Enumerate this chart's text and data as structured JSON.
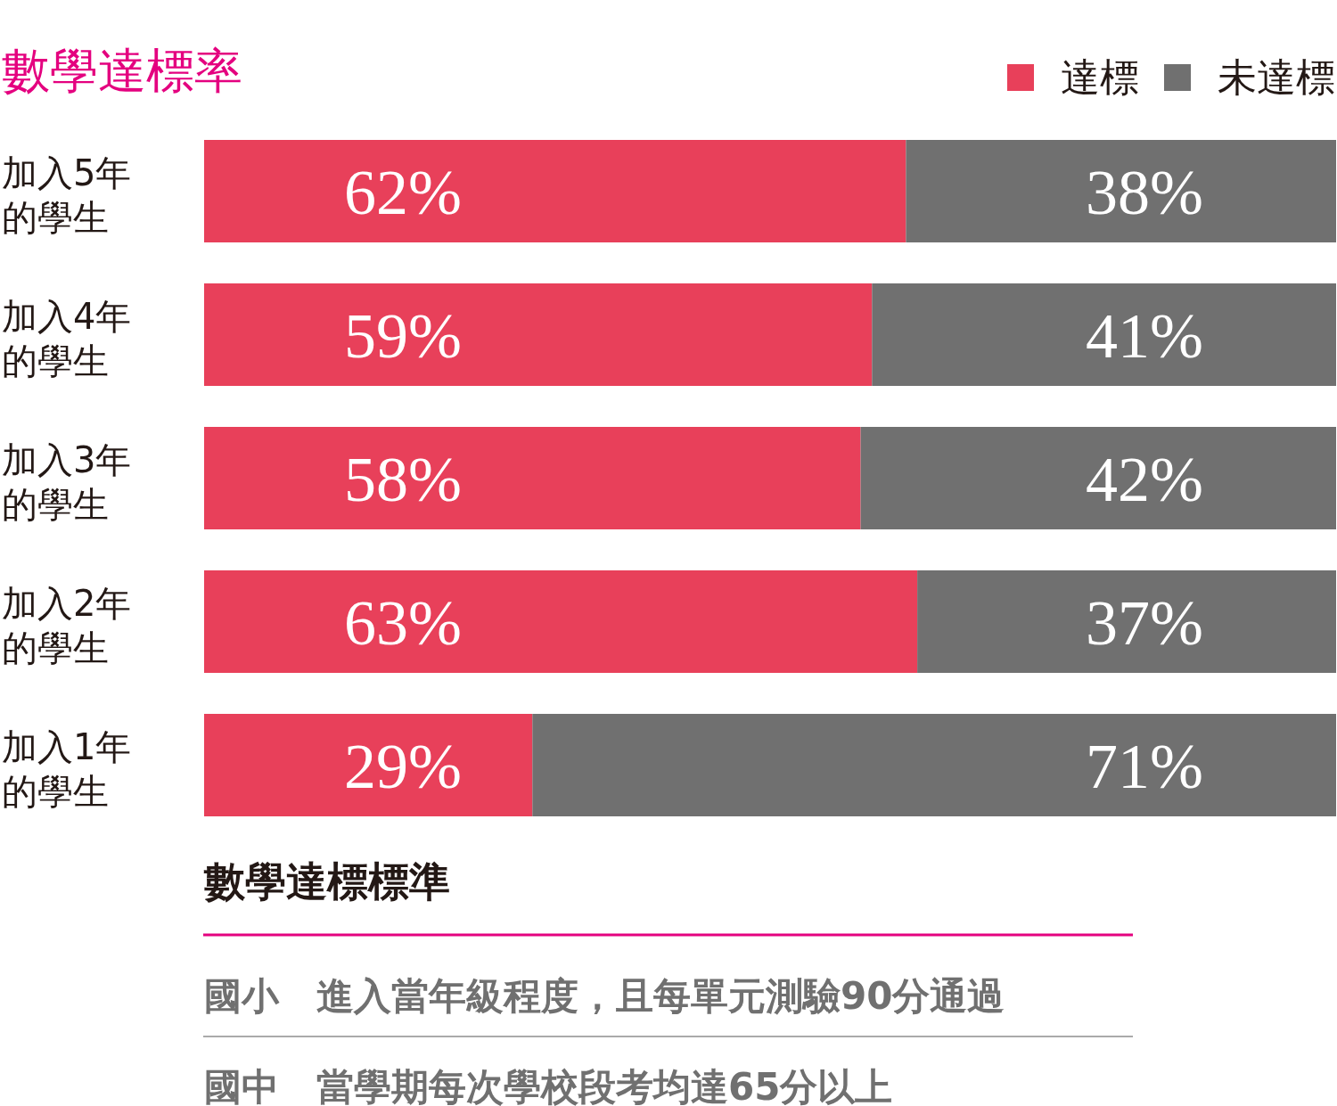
{
  "chart_data": {
    "type": "bar",
    "orientation": "horizontal",
    "stacked": true,
    "title": "數學達標率",
    "categories": [
      "加入5年的學生",
      "加入4年的學生",
      "加入3年的學生",
      "加入2年的學生",
      "加入1年的學生"
    ],
    "series": [
      {
        "name": "達標",
        "color": "#e8405a",
        "values": [
          62,
          59,
          58,
          63,
          29
        ],
        "value_labels": [
          "62%",
          "59%",
          "58%",
          "63%",
          "29%"
        ]
      },
      {
        "name": "未達標",
        "color": "#707070",
        "values": [
          38,
          41,
          42,
          37,
          71
        ],
        "value_labels": [
          "38%",
          "41%",
          "42%",
          "37%",
          "71%"
        ]
      }
    ],
    "legend": "top right",
    "annotations": [
      "數學達標標準",
      "國小　進入當年級程度，且每單元測驗90分通過",
      "國中　當學期每次學校段考均達65分以上"
    ]
  }
}
